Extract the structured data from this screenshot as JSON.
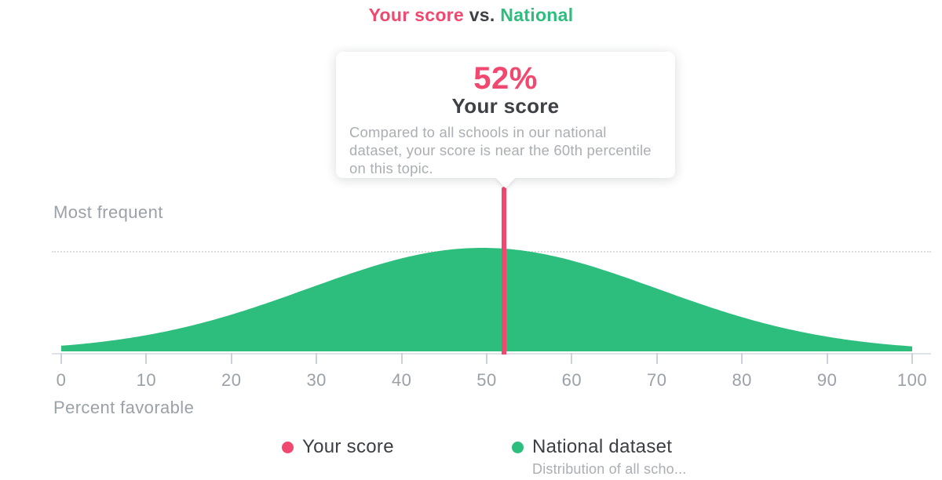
{
  "title": {
    "your_score": "Your score",
    "vs": "vs.",
    "national": "National"
  },
  "tooltip": {
    "value": "52%",
    "label": "Your score",
    "description": "Compared to all schools in our national dataset, your score is near the 60th percentile on this topic."
  },
  "axis": {
    "y_label": "Most frequent",
    "x_label": "Percent favorable"
  },
  "legend": {
    "your_score_label": "Your score",
    "national_label": "National dataset",
    "national_sublabel": "Distribution of all scho..."
  },
  "colors": {
    "pink": "#f0486e",
    "green": "#2dbe7e",
    "dark_text": "#3d4045",
    "gray_text": "#9ba1a8",
    "light_gray_text": "#abaeb3",
    "axis_line": "#dde3e9",
    "tick_mark": "#c9d2da",
    "dotted_line": "#dcdcdc"
  },
  "chart_data": {
    "type": "area",
    "title": "Your score vs. National",
    "xlabel": "Percent favorable",
    "ylabel": "Most frequent",
    "xlim": [
      0,
      100
    ],
    "x_ticks": [
      0,
      10,
      20,
      30,
      40,
      50,
      60,
      70,
      80,
      90,
      100
    ],
    "grid": "off",
    "legend_position": "bottom-center",
    "reference_line": {
      "label": "Most frequent",
      "at": "peak of national distribution",
      "style": "dotted"
    },
    "series": [
      {
        "name": "National dataset",
        "kind": "normal-distribution-area",
        "color": "#2dbe7e",
        "mean": 49.5,
        "stddev": 20.5,
        "samples_x": [
          0,
          10,
          20,
          30,
          40,
          50,
          60,
          70,
          80,
          90,
          100
        ],
        "samples_height_relative": [
          0.05,
          0.16,
          0.36,
          0.64,
          0.9,
          1.0,
          0.88,
          0.61,
          0.33,
          0.14,
          0.05
        ]
      },
      {
        "name": "Your score",
        "kind": "vertical-marker",
        "color": "#f0486e",
        "x": 52,
        "value_label": "52%"
      }
    ]
  }
}
